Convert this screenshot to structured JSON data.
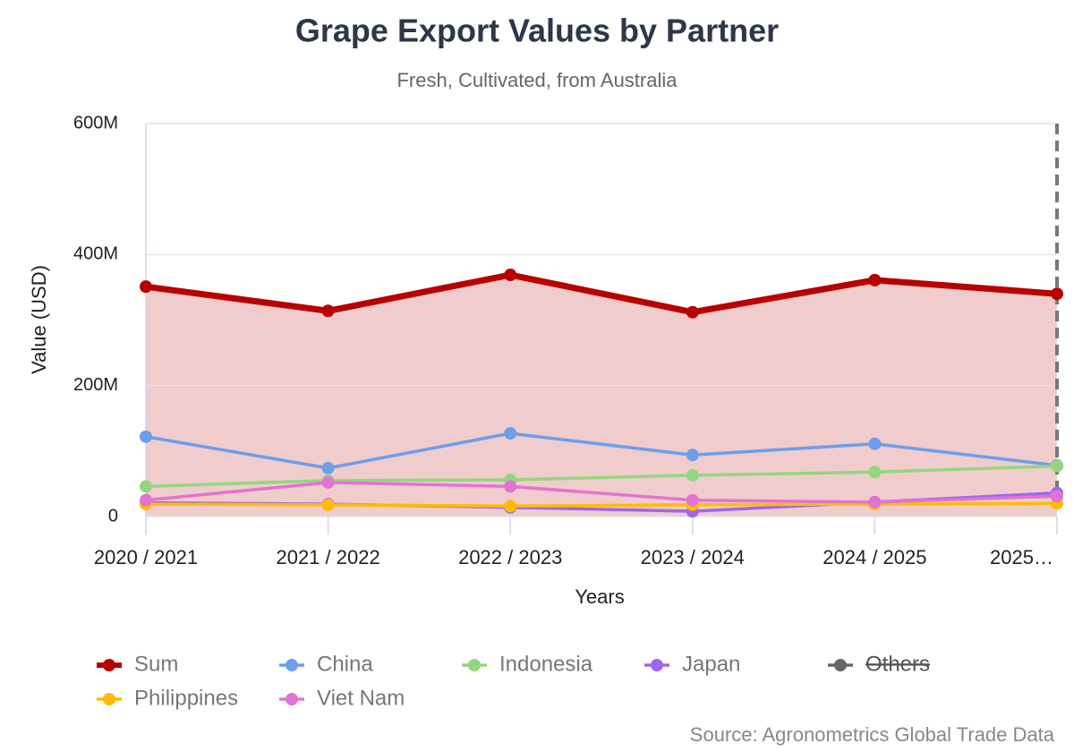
{
  "chart_data": {
    "type": "line",
    "title": "Grape Export Values by Partner",
    "subtitle": "Fresh, Cultivated, from Australia",
    "y_label": "Value (USD)",
    "x_label": "Years",
    "source": "Source: Agronometrics Global Trade Data",
    "categories": [
      "2020 / 2021",
      "2021 / 2022",
      "2022 / 2023",
      "2023 / 2024",
      "2024 / 2025",
      "2025…"
    ],
    "ylim": [
      0,
      600000000
    ],
    "yticks": [
      0,
      {
        "value": 200000000,
        "label": "200M"
      },
      {
        "value": 400000000,
        "label": "400M"
      },
      {
        "value": 600000000,
        "label": "600M"
      }
    ],
    "grid": true,
    "area_series": "Sum",
    "highlight_last": true,
    "legend": "bottom",
    "series": [
      {
        "name": "Sum",
        "color": "#b80000",
        "values": [
          351000000,
          314000000,
          369000000,
          312000000,
          361000000,
          340000000
        ]
      },
      {
        "name": "China",
        "color": "#6d9eeb",
        "values": [
          122000000,
          74000000,
          127000000,
          94000000,
          111000000,
          78000000
        ]
      },
      {
        "name": "Indonesia",
        "color": "#93d67f",
        "values": [
          46000000,
          55000000,
          56000000,
          63000000,
          68000000,
          77000000
        ]
      },
      {
        "name": "Japan",
        "color": "#9e66ef",
        "values": [
          21000000,
          19000000,
          14000000,
          8000000,
          22000000,
          36000000
        ]
      },
      {
        "name": "Others",
        "color": "#666666",
        "hidden": true,
        "values": [
          null,
          null,
          null,
          null,
          null,
          null
        ]
      },
      {
        "name": "Philippines",
        "color": "#ffbb00",
        "values": [
          19000000,
          18000000,
          16000000,
          18000000,
          19000000,
          20000000
        ]
      },
      {
        "name": "Viet Nam",
        "color": "#e174d3",
        "values": [
          25000000,
          52000000,
          46000000,
          25000000,
          22000000,
          31000000
        ]
      }
    ]
  }
}
